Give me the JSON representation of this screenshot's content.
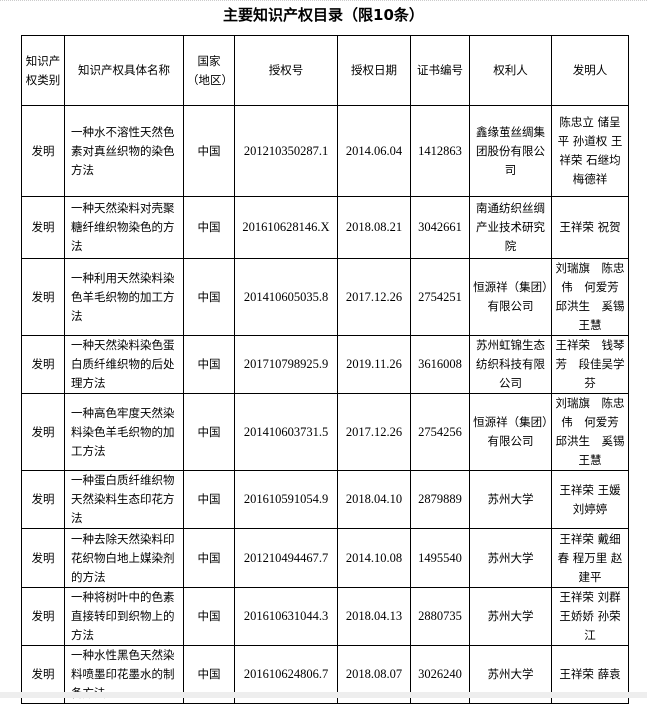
{
  "title": "主要知识产权目录（限10条）",
  "columns": [
    "知识产权类别",
    "知识产权具体名称",
    "国家（地区）",
    "授权号",
    "授权日期",
    "证书编号",
    "权利人",
    "发明人"
  ],
  "rows": [
    {
      "type": "发明",
      "name": "一种水不溶性天然色素对真丝织物的染色方法",
      "country": "中国",
      "grant_no": "201210350287.1",
      "date": "2014.06.04",
      "cert": "1412863",
      "holder": "鑫缘茧丝绸集团股份有限公司",
      "inventors": "陈忠立 储呈平 孙道权 王祥荣 石继均 梅德祥"
    },
    {
      "type": "发明",
      "name": "一种天然染料对壳聚糖纤维织物染色的方法",
      "country": "中国",
      "grant_no": "201610628146.X",
      "date": "2018.08.21",
      "cert": "3042661",
      "holder": "南通纺织丝绸产业技术研究院",
      "inventors": "王祥荣 祝贺"
    },
    {
      "type": "发明",
      "name": "一种利用天然染料染色羊毛织物的加工方法",
      "country": "中国",
      "grant_no": "201410605035.8",
      "date": "2017.12.26",
      "cert": "2754251",
      "holder": "恒源祥（集团）有限公司",
      "inventors": "刘瑞旗　陈忠伟　何爱芳　邱洪生　奚锡　王慧"
    },
    {
      "type": "发明",
      "name": "一种天然染料染色蛋白质纤维织物的后处理方法",
      "country": "中国",
      "grant_no": "201710798925.9",
      "date": "2019.11.26",
      "cert": "3616008",
      "holder": "苏州虹锦生态纺织科技有限公司",
      "inventors": "王祥荣　钱琴芳　段佳吴学芬"
    },
    {
      "type": "发明",
      "name": "一种高色牢度天然染料染色羊毛织物的加工方法",
      "country": "中国",
      "grant_no": "201410603731.5",
      "date": "2017.12.26",
      "cert": "2754256",
      "holder": "恒源祥（集团）有限公司",
      "inventors": "刘瑞旗　陈忠伟　何爱芳　邱洪生　奚锡　王慧"
    },
    {
      "type": "发明",
      "name": "一种蛋白质纤维织物天然染料生态印花方法",
      "country": "中国",
      "grant_no": "201610591054.9",
      "date": "2018.04.10",
      "cert": "2879889",
      "holder": "苏州大学",
      "inventors": "王祥荣 王媛 刘婷婷"
    },
    {
      "type": "发明",
      "name": "一种去除天然染料印花织物白地上媒染剂的方法",
      "country": "中国",
      "grant_no": "201210494467.7",
      "date": "2014.10.08",
      "cert": "1495540",
      "holder": "苏州大学",
      "inventors": "王祥荣 戴细春 程万里 赵建平"
    },
    {
      "type": "发明",
      "name": "一种将树叶中的色素直接转印到织物上的方法",
      "country": "中国",
      "grant_no": "201610631044.3",
      "date": "2018.04.13",
      "cert": "2880735",
      "holder": "苏州大学",
      "inventors": "王祥荣 刘群 王娇娇 孙荣江"
    },
    {
      "type": "发明",
      "name": "一种水性黑色天然染料喷墨印花墨水的制备方法",
      "country": "中国",
      "grant_no": "201610624806.7",
      "date": "2018.08.07",
      "cert": "3026240",
      "holder": "苏州大学",
      "inventors": "王祥荣 薛袁"
    }
  ]
}
